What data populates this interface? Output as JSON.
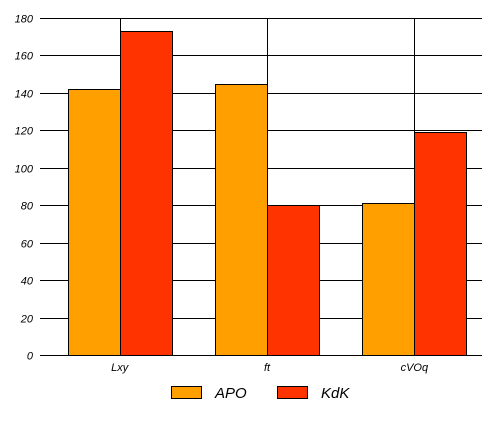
{
  "chart_data": {
    "type": "bar",
    "title": "",
    "xlabel": "",
    "ylabel": "",
    "categories": [
      "Lxy",
      "ft",
      "cVOq"
    ],
    "series": [
      {
        "name": "APO",
        "color": "#ffa000",
        "values": [
          142,
          145,
          81
        ]
      },
      {
        "name": "KdK",
        "color": "#ff3300",
        "values": [
          173,
          80,
          119
        ]
      }
    ],
    "ylim": [
      0,
      180
    ],
    "yticks": [
      "0",
      "20",
      "40",
      "60",
      "80",
      "100",
      "120",
      "140",
      "160",
      "180"
    ],
    "grid": {
      "horizontal": true,
      "vertical": true
    },
    "legend": "bottom"
  }
}
